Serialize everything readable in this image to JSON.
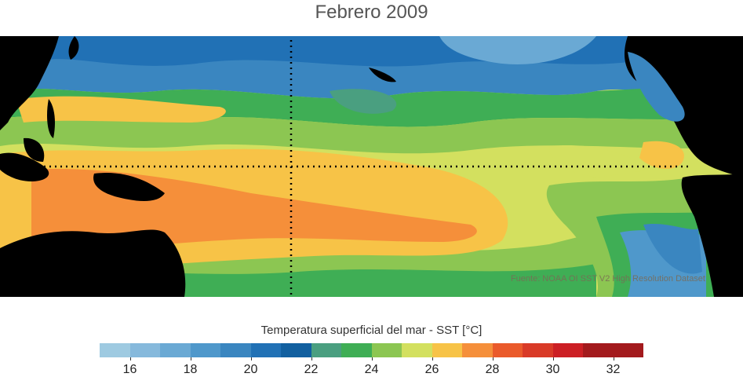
{
  "title": "Febrero 2009",
  "source_note": "Fuente: NOAA OI SST V2 High Resolution Dataset",
  "colorbar": {
    "label": "Temperatura superficial del mar - SST  [°C]",
    "min": 15,
    "max": 33,
    "step": 1,
    "tick_labels": [
      "16",
      "18",
      "20",
      "22",
      "24",
      "26",
      "28",
      "30",
      "32"
    ],
    "colors": [
      "#9ecae1",
      "#86b9dc",
      "#6aa9d4",
      "#4f98cb",
      "#3a86c0",
      "#2171b5",
      "#1260a0",
      "#4a9f80",
      "#3fae55",
      "#8cc652",
      "#d3e05f",
      "#f7c347",
      "#f58f3a",
      "#ea5a2b",
      "#d93a27",
      "#cc1f24",
      "#a31a1d",
      "#a31a1d"
    ]
  },
  "map_features": [
    "equator-line",
    "dateline-180"
  ],
  "colors": {
    "land": "#000000",
    "background": "#ffffff"
  }
}
